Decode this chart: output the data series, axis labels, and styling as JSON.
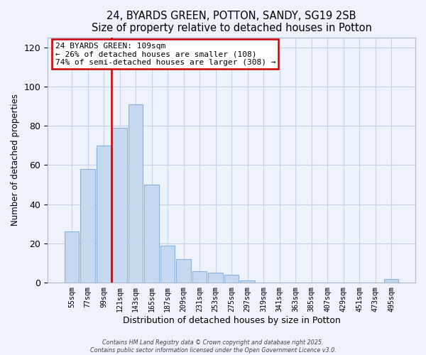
{
  "title": "24, BYARDS GREEN, POTTON, SANDY, SG19 2SB",
  "subtitle": "Size of property relative to detached houses in Potton",
  "xlabel": "Distribution of detached houses by size in Potton",
  "ylabel": "Number of detached properties",
  "bar_color": "#c5d8f0",
  "bar_edge_color": "#8ab4d8",
  "categories": [
    "55sqm",
    "77sqm",
    "99sqm",
    "121sqm",
    "143sqm",
    "165sqm",
    "187sqm",
    "209sqm",
    "231sqm",
    "253sqm",
    "275sqm",
    "297sqm",
    "319sqm",
    "341sqm",
    "363sqm",
    "385sqm",
    "407sqm",
    "429sqm",
    "451sqm",
    "473sqm",
    "495sqm"
  ],
  "values": [
    26,
    58,
    70,
    79,
    91,
    50,
    19,
    12,
    6,
    5,
    4,
    1,
    0,
    0,
    0,
    0,
    0,
    0,
    0,
    0,
    2
  ],
  "ylim": [
    0,
    125
  ],
  "yticks": [
    0,
    20,
    40,
    60,
    80,
    100,
    120
  ],
  "vline_x_index": 2.5,
  "vline_color": "#cc0000",
  "annotation_text": "24 BYARDS GREEN: 109sqm\n← 26% of detached houses are smaller (108)\n74% of semi-detached houses are larger (308) →",
  "annotation_box_color": "#ffffff",
  "annotation_box_edge_color": "#cc0000",
  "footer_line1": "Contains HM Land Registry data © Crown copyright and database right 2025.",
  "footer_line2": "Contains public sector information licensed under the Open Government Licence v3.0.",
  "background_color": "#eef2fb",
  "grid_color": "#c8d0e8"
}
